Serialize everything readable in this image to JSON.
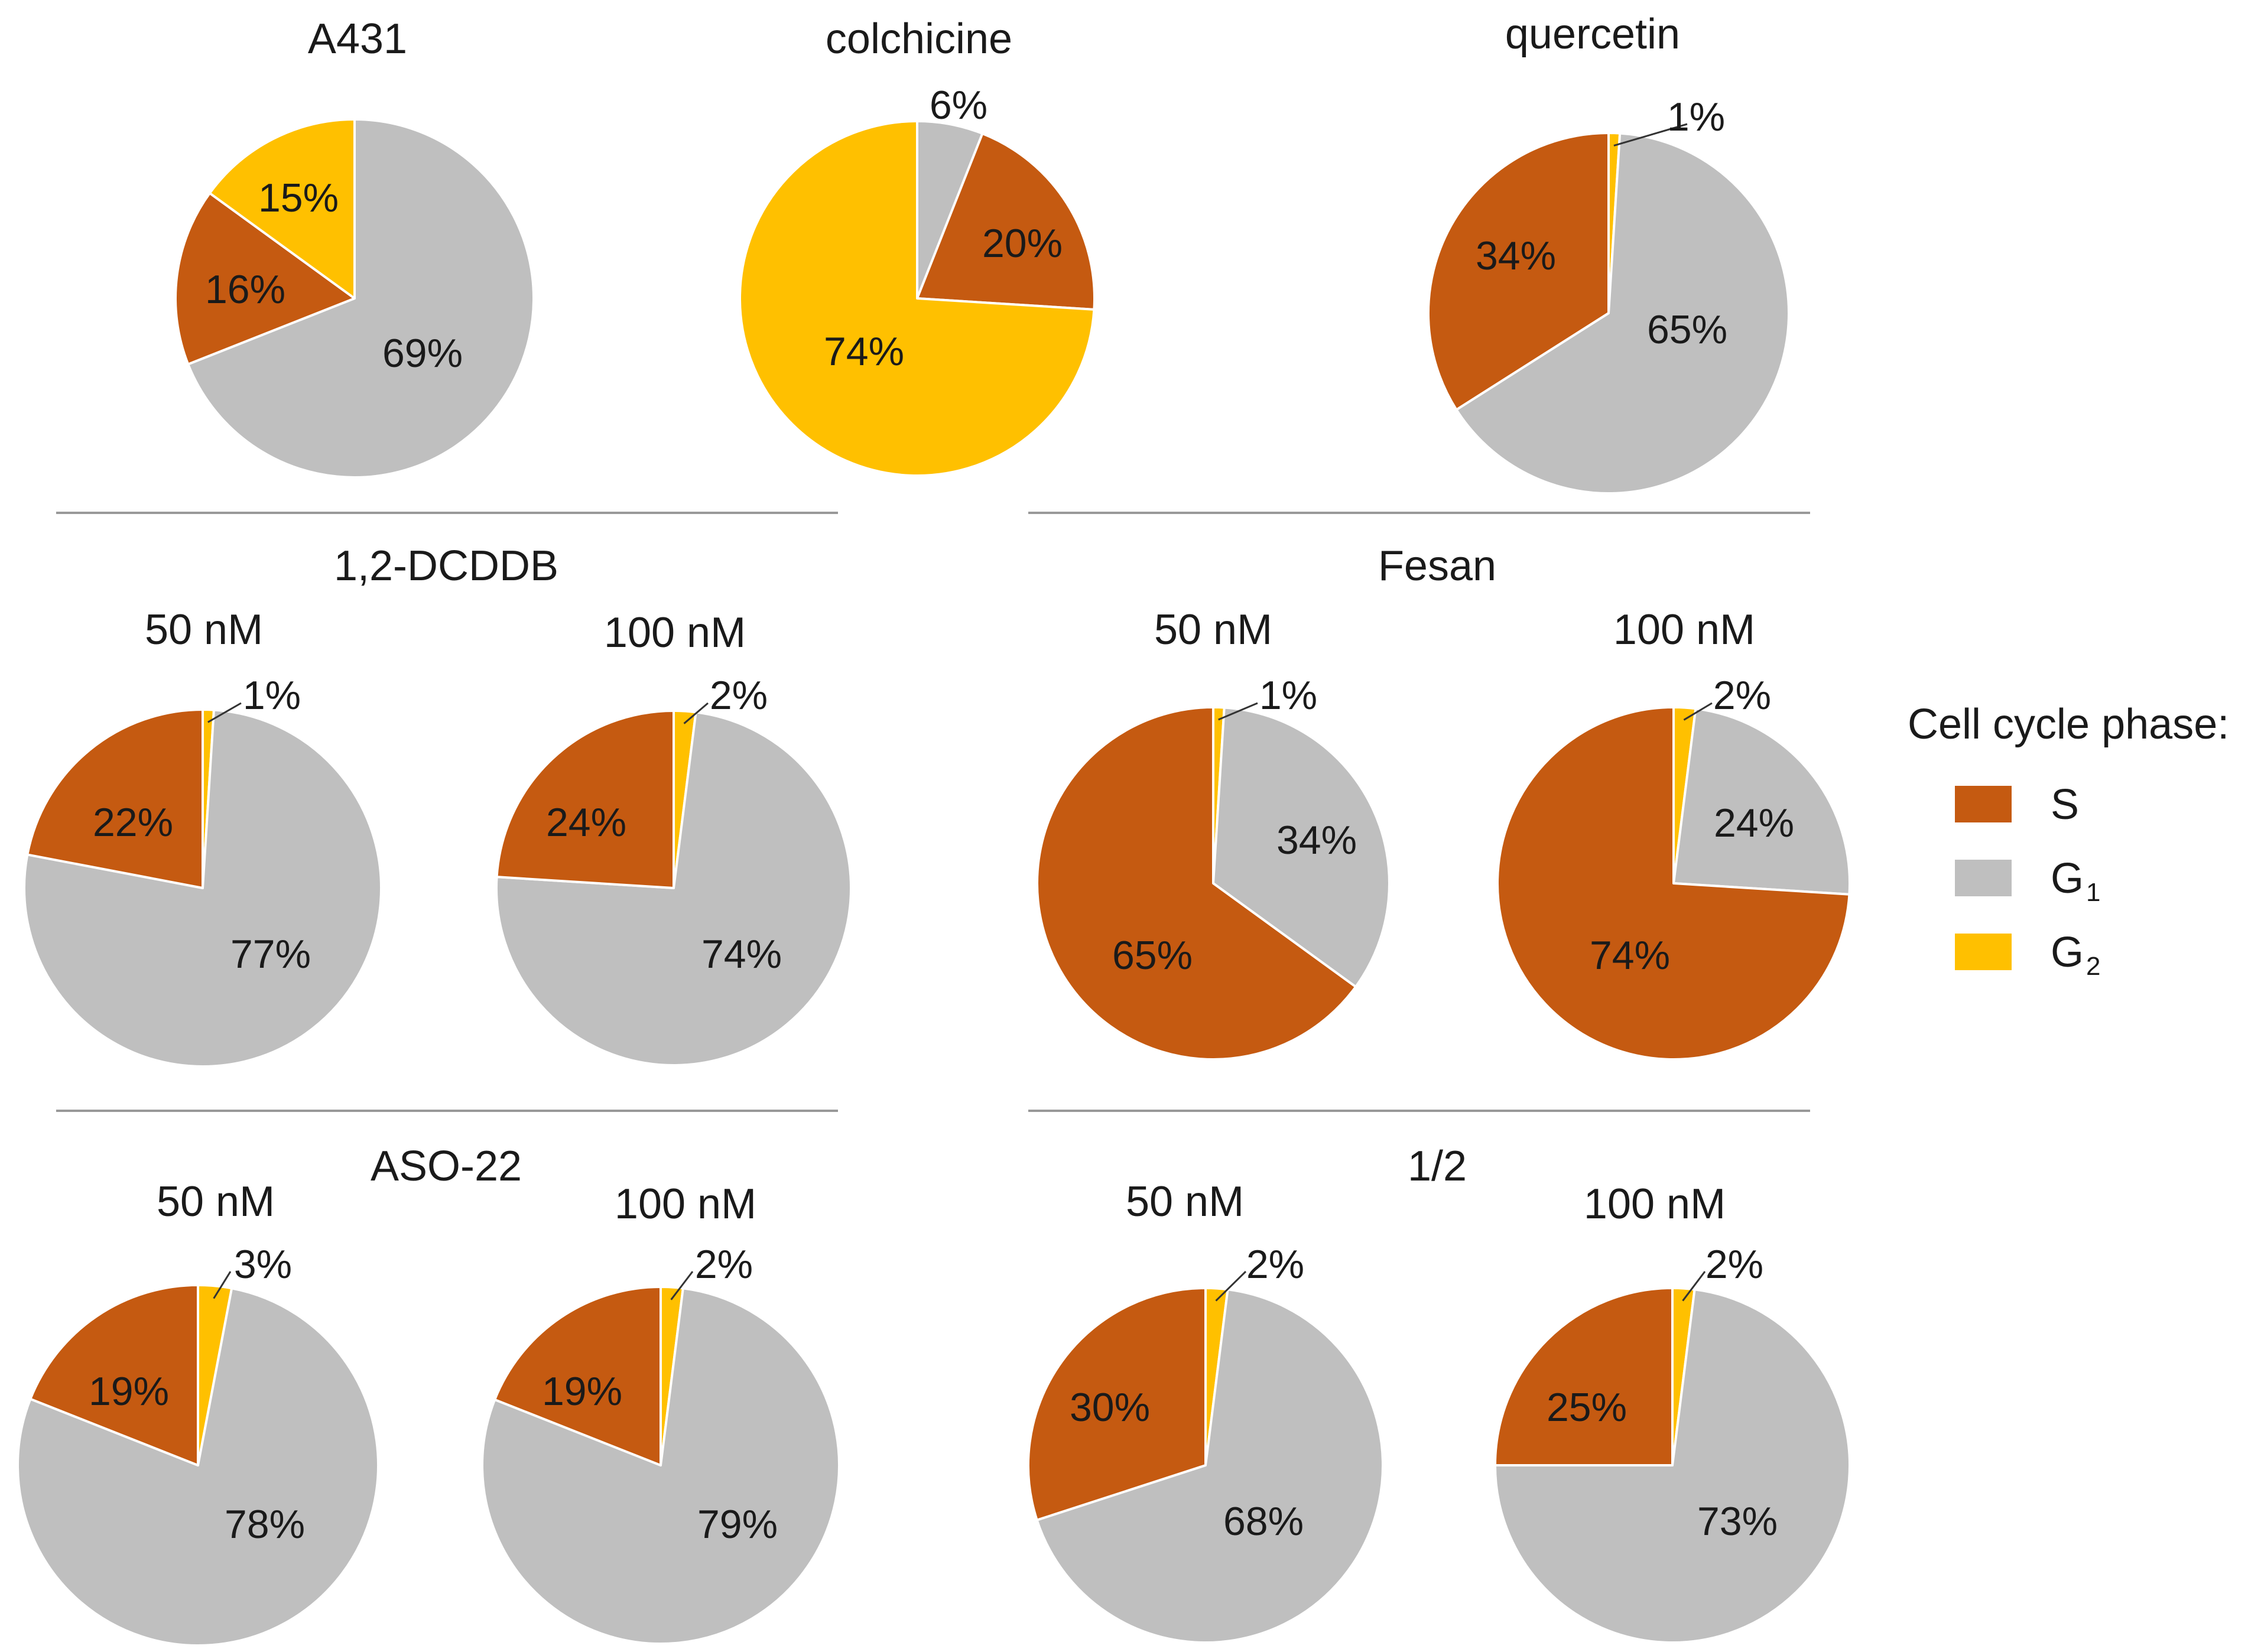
{
  "legend": {
    "title": "Cell cycle phase:",
    "items": [
      {
        "key": "S",
        "label": "S",
        "sub": "",
        "color": "#C55A11"
      },
      {
        "key": "G1",
        "label": "G",
        "sub": "1",
        "color": "#BFBFBF"
      },
      {
        "key": "G2",
        "label": "G",
        "sub": "2",
        "color": "#FFC000"
      }
    ]
  },
  "groups": {
    "g1": "1,2-DCDDB",
    "g2": "Fesan",
    "g3": "ASO-22",
    "g4": "1/2"
  },
  "chart_data": [
    {
      "id": "a431",
      "type": "pie",
      "title": "A431",
      "series": [
        {
          "name": "S",
          "value": 16,
          "label": "16%"
        },
        {
          "name": "G1",
          "value": 69,
          "label": "69%"
        },
        {
          "name": "G2",
          "value": 15,
          "label": "15%"
        }
      ]
    },
    {
      "id": "colchicine",
      "type": "pie",
      "title": "colchicine",
      "series": [
        {
          "name": "S",
          "value": 20,
          "label": "20%"
        },
        {
          "name": "G1",
          "value": 6,
          "label": "6%"
        },
        {
          "name": "G2",
          "value": 74,
          "label": "74%"
        }
      ]
    },
    {
      "id": "quercetin",
      "type": "pie",
      "title": "quercetin",
      "series": [
        {
          "name": "S",
          "value": 34,
          "label": "34%"
        },
        {
          "name": "G1",
          "value": 65,
          "label": "65%"
        },
        {
          "name": "G2",
          "value": 1,
          "label": "1%"
        }
      ]
    },
    {
      "id": "dcddb-50",
      "type": "pie",
      "title": "50 nM",
      "group": "1,2-DCDDB",
      "series": [
        {
          "name": "S",
          "value": 22,
          "label": "22%"
        },
        {
          "name": "G1",
          "value": 77,
          "label": "77%"
        },
        {
          "name": "G2",
          "value": 1,
          "label": "1%"
        }
      ]
    },
    {
      "id": "dcddb-100",
      "type": "pie",
      "title": "100 nM",
      "group": "1,2-DCDDB",
      "series": [
        {
          "name": "S",
          "value": 24,
          "label": "24%"
        },
        {
          "name": "G1",
          "value": 74,
          "label": "74%"
        },
        {
          "name": "G2",
          "value": 2,
          "label": "2%"
        }
      ]
    },
    {
      "id": "fesan-50",
      "type": "pie",
      "title": "50 nM",
      "group": "Fesan",
      "series": [
        {
          "name": "S",
          "value": 65,
          "label": "65%"
        },
        {
          "name": "G1",
          "value": 34,
          "label": "34%"
        },
        {
          "name": "G2",
          "value": 1,
          "label": "1%"
        }
      ]
    },
    {
      "id": "fesan-100",
      "type": "pie",
      "title": "100 nM",
      "group": "Fesan",
      "series": [
        {
          "name": "S",
          "value": 74,
          "label": "74%"
        },
        {
          "name": "G1",
          "value": 24,
          "label": "24%"
        },
        {
          "name": "G2",
          "value": 2,
          "label": "2%"
        }
      ]
    },
    {
      "id": "aso-50",
      "type": "pie",
      "title": "50 nM",
      "group": "ASO-22",
      "series": [
        {
          "name": "S",
          "value": 19,
          "label": "19%"
        },
        {
          "name": "G1",
          "value": 78,
          "label": "78%"
        },
        {
          "name": "G2",
          "value": 3,
          "label": "3%"
        }
      ]
    },
    {
      "id": "aso-100",
      "type": "pie",
      "title": "100 nM",
      "group": "ASO-22",
      "series": [
        {
          "name": "S",
          "value": 19,
          "label": "19%"
        },
        {
          "name": "G1",
          "value": 79,
          "label": "79%"
        },
        {
          "name": "G2",
          "value": 2,
          "label": "2%"
        }
      ]
    },
    {
      "id": "half-50",
      "type": "pie",
      "title": "50 nM",
      "group": "1/2",
      "series": [
        {
          "name": "S",
          "value": 30,
          "label": "30%"
        },
        {
          "name": "G1",
          "value": 68,
          "label": "68%"
        },
        {
          "name": "G2",
          "value": 2,
          "label": "2%"
        }
      ]
    },
    {
      "id": "half-100",
      "type": "pie",
      "title": "100 nM",
      "group": "1/2",
      "series": [
        {
          "name": "S",
          "value": 25,
          "label": "25%"
        },
        {
          "name": "G1",
          "value": 73,
          "label": "73%"
        },
        {
          "name": "G2",
          "value": 2,
          "label": "2%"
        }
      ]
    }
  ]
}
